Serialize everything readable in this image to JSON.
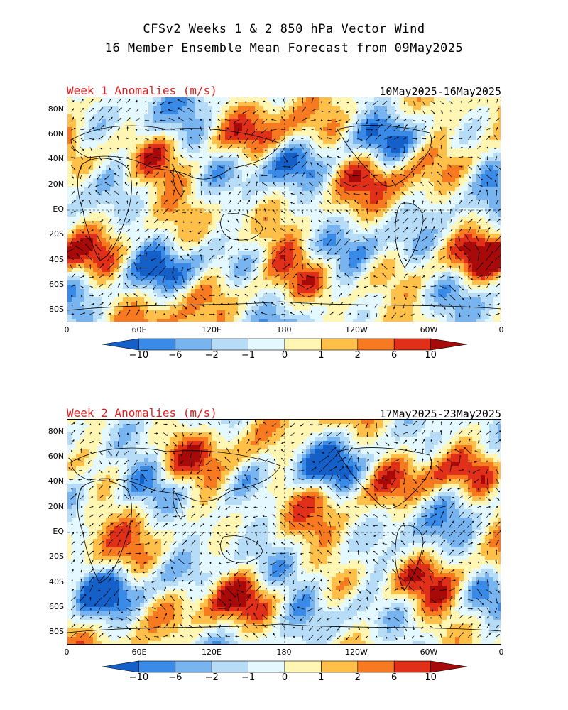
{
  "title": {
    "line1": "CFSv2 Weeks 1 & 2 850 hPa Vector Wind",
    "line2": "16 Member Ensemble Mean Forecast from 09May2025"
  },
  "lat_labels": [
    "80N",
    "60N",
    "40N",
    "20N",
    "EQ",
    "20S",
    "40S",
    "60S",
    "80S"
  ],
  "lon_labels": [
    "0",
    "60E",
    "120E",
    "180",
    "120W",
    "60W",
    "0"
  ],
  "colorbar": {
    "labels": [
      "-10",
      "-6",
      "-2",
      "-1",
      "0",
      "1",
      "2",
      "6",
      "10"
    ],
    "colors": [
      "#1560c8",
      "#3a8be8",
      "#78b4f0",
      "#b6dcf8",
      "#e4f8ff",
      "#fff6b4",
      "#ffc04a",
      "#f77a20",
      "#e0301a",
      "#a80a0a"
    ]
  },
  "panels": [
    {
      "label": "Week 1 Anomalies (m/s)",
      "dates": "10May2025-16May2025",
      "field_seed": 1
    },
    {
      "label": "Week 2 Anomalies (m/s)",
      "dates": "17May2025-23May2025",
      "field_seed": 2
    }
  ],
  "chart_data": [
    {
      "type": "heatmap",
      "title": "Week 1 Anomalies (m/s)",
      "subtitle": "10May2025-16May2025",
      "variable": "850 hPa vector wind anomaly",
      "units": "m/s",
      "x_ticks": [
        "0",
        "60E",
        "120E",
        "180",
        "120W",
        "60W",
        "0"
      ],
      "y_ticks": [
        "80N",
        "60N",
        "40N",
        "20N",
        "EQ",
        "20S",
        "40S",
        "60S",
        "80S"
      ],
      "color_levels": [
        -10,
        -6,
        -2,
        -1,
        0,
        1,
        2,
        6,
        10
      ]
    },
    {
      "type": "heatmap",
      "title": "Week 2 Anomalies (m/s)",
      "subtitle": "17May2025-23May2025",
      "variable": "850 hPa vector wind anomaly",
      "units": "m/s",
      "x_ticks": [
        "0",
        "60E",
        "120E",
        "180",
        "120W",
        "60W",
        "0"
      ],
      "y_ticks": [
        "80N",
        "60N",
        "40N",
        "20N",
        "EQ",
        "20S",
        "40S",
        "60S",
        "80S"
      ],
      "color_levels": [
        -10,
        -6,
        -2,
        -1,
        0,
        1,
        2,
        6,
        10
      ]
    }
  ]
}
